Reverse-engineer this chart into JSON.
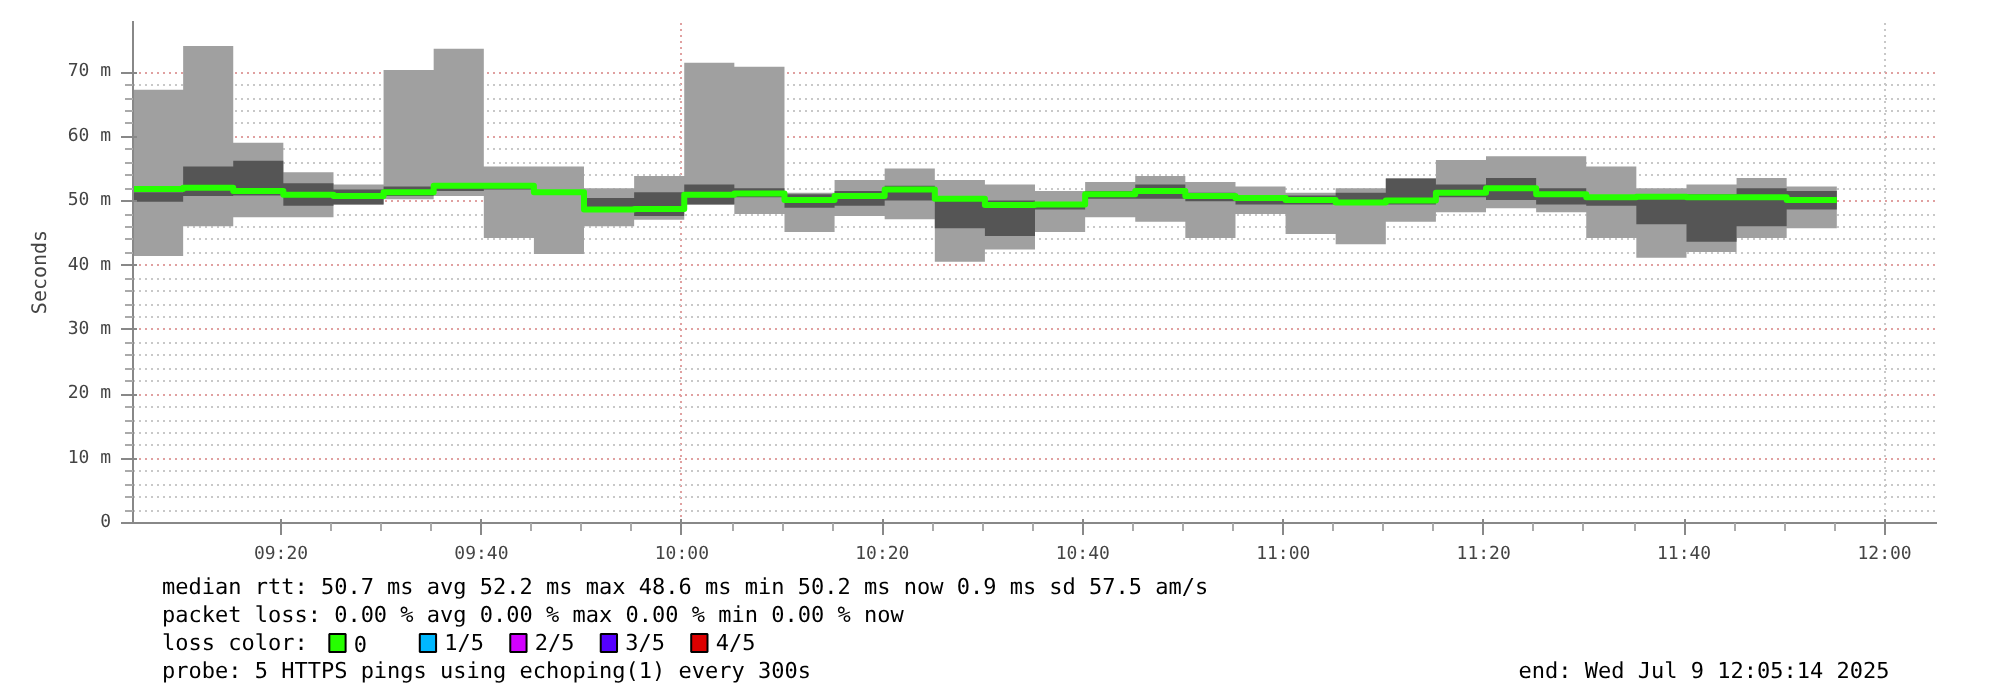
{
  "chart_data": {
    "type": "step",
    "ylabel": "Seconds",
    "legend_title": "loss color:",
    "legend": "bottom",
    "grid": true,
    "xlim": [
      9.0872,
      12.0872
    ],
    "ylim": [
      0,
      78
    ],
    "xticks": [
      {
        "value": 9.333333,
        "label": "09:20"
      },
      {
        "value": 9.666667,
        "label": "09:40"
      },
      {
        "value": 10.0,
        "label": "10:00"
      },
      {
        "value": 10.333333,
        "label": "10:20"
      },
      {
        "value": 10.666667,
        "label": "10:40"
      },
      {
        "value": 11.0,
        "label": "11:00"
      },
      {
        "value": 11.333333,
        "label": "11:20"
      },
      {
        "value": 11.666667,
        "label": "11:40"
      },
      {
        "value": 12.0,
        "label": "12:00"
      }
    ],
    "yticks": [
      0,
      {
        "value": 10,
        "label": "10 m"
      },
      {
        "value": 20,
        "label": "20 m"
      },
      {
        "value": 30,
        "label": "30 m"
      },
      {
        "value": 40,
        "label": "40 m"
      },
      {
        "value": 50,
        "label": "50 m"
      },
      {
        "value": 60,
        "label": "60 m"
      },
      {
        "value": 70,
        "label": "70 m"
      }
    ],
    "x": [
      9.0872,
      9.1706,
      9.2539,
      9.3372,
      9.4206,
      9.5039,
      9.5872,
      9.6706,
      9.7539,
      9.8372,
      9.9206,
      10.0039,
      10.0872,
      10.1706,
      10.2539,
      10.3372,
      10.4206,
      10.5039,
      10.5872,
      10.6706,
      10.7539,
      10.8372,
      10.9206,
      11.0039,
      11.0872,
      11.1706,
      11.2539,
      11.3372,
      11.4206,
      11.5039,
      11.5872,
      11.6706,
      11.7539,
      11.8372,
      11.9206
    ],
    "series": [
      {
        "color": "#a0a0a0",
        "values": [
          null,
          null,
          null,
          null,
          null,
          null,
          null,
          null,
          null,
          null,
          null,
          null,
          null,
          null,
          null,
          null,
          null,
          null,
          null,
          null,
          null,
          null,
          null,
          null,
          null,
          null,
          null,
          null,
          null,
          null,
          null,
          null,
          null,
          null,
          null
        ],
        "lower": [
          41.5,
          46.1,
          47.5,
          47.5,
          49.5,
          50.3,
          50.8,
          44.3,
          41.8,
          46.1,
          47.1,
          49.5,
          48.0,
          45.2,
          47.7,
          47.2,
          40.6,
          42.5,
          45.2,
          47.5,
          46.8,
          44.3,
          48.0,
          44.9,
          43.3,
          46.8,
          48.3,
          48.9,
          48.3,
          44.3,
          41.2,
          42.1,
          44.3,
          45.8,
          45.8
        ],
        "upper": [
          67.3,
          74.1,
          59.1,
          54.5,
          52.6,
          70.4,
          73.7,
          55.4,
          55.4,
          52.0,
          53.9,
          71.5,
          70.9,
          51.3,
          53.3,
          55.1,
          53.3,
          52.6,
          51.6,
          53.0,
          53.9,
          53.0,
          52.3,
          51.3,
          52.0,
          53.6,
          56.4,
          57.0,
          57.0,
          55.4,
          52.0,
          52.6,
          53.6,
          52.3,
          52.3
        ]
      },
      {
        "color": "#555555",
        "values": [
          null,
          null,
          null,
          null,
          null,
          null,
          null,
          null,
          null,
          null,
          null,
          null,
          null,
          null,
          null,
          null,
          null,
          null,
          null,
          null,
          null,
          null,
          null,
          null,
          null,
          null,
          null,
          null,
          null,
          null,
          null,
          null,
          null,
          null,
          null
        ],
        "lower": [
          49.9,
          50.8,
          50.9,
          49.3,
          49.5,
          50.8,
          51.6,
          51.8,
          51.1,
          48.5,
          47.7,
          49.5,
          50.6,
          49.0,
          49.3,
          50.1,
          45.8,
          44.6,
          48.7,
          50.4,
          50.4,
          50.0,
          49.5,
          49.5,
          49.5,
          49.5,
          50.6,
          50.2,
          49.5,
          49.3,
          46.4,
          43.7,
          46.1,
          48.7,
          48.7
        ],
        "upper": [
          51.4,
          55.4,
          56.3,
          52.8,
          51.8,
          52.3,
          52.8,
          52.4,
          51.6,
          50.5,
          51.4,
          52.6,
          52.0,
          51.1,
          51.6,
          52.4,
          50.8,
          50.1,
          49.7,
          51.6,
          52.6,
          51.3,
          50.8,
          50.9,
          51.3,
          53.5,
          52.6,
          53.6,
          52.0,
          50.8,
          51.1,
          51.1,
          52.0,
          51.6,
          51.6
        ]
      },
      {
        "name": "0",
        "color": "#26ff00",
        "values": [
          51.9,
          52.1,
          51.6,
          51.0,
          50.8,
          51.4,
          52.4,
          52.4,
          51.4,
          48.7,
          48.8,
          51.0,
          51.2,
          50.2,
          50.8,
          51.8,
          50.4,
          49.4,
          49.5,
          51.1,
          51.6,
          50.8,
          50.5,
          50.2,
          49.8,
          50.1,
          51.3,
          52.0,
          51.1,
          50.6,
          50.7,
          50.6,
          50.6,
          50.2,
          50.2
        ]
      },
      {
        "name": "1/5",
        "color": "#00b8ff",
        "values": [
          null,
          null,
          null,
          null,
          null,
          null,
          null,
          null,
          null,
          null,
          null,
          null,
          null,
          null,
          null,
          null,
          null,
          null,
          null,
          null,
          null,
          null,
          null,
          null,
          null,
          null,
          null,
          null,
          null,
          null,
          null,
          null,
          null,
          null,
          null
        ]
      },
      {
        "name": "2/5",
        "color": "#d200ff",
        "values": [
          null,
          null,
          null,
          null,
          null,
          null,
          null,
          null,
          null,
          null,
          null,
          null,
          null,
          null,
          null,
          null,
          null,
          null,
          null,
          null,
          null,
          null,
          null,
          null,
          null,
          null,
          null,
          null,
          null,
          null,
          null,
          null,
          null,
          null,
          null
        ]
      },
      {
        "name": "3/5",
        "color": "#5500ff",
        "values": [
          null,
          null,
          null,
          null,
          null,
          null,
          null,
          null,
          null,
          null,
          null,
          null,
          null,
          null,
          null,
          null,
          null,
          null,
          null,
          null,
          null,
          null,
          null,
          null,
          null,
          null,
          null,
          null,
          null,
          null,
          null,
          null,
          null,
          null,
          null
        ]
      },
      {
        "name": "4/5",
        "color": "#dd0000",
        "values": [
          null,
          null,
          null,
          null,
          null,
          null,
          null,
          null,
          null,
          null,
          null,
          null,
          null,
          null,
          null,
          null,
          null,
          null,
          null,
          null,
          null,
          null,
          null,
          null,
          null,
          null,
          null,
          null,
          null,
          null,
          null,
          null,
          null,
          null,
          null
        ]
      }
    ],
    "annotations": [
      "median rtt:  50.7 ms avg  52.2 ms max  48.6 ms min  50.2 ms now  0.9 ms sd  57.5   am/s",
      "packet loss: 0.00 % avg  0.00 % max  0.00 % min  0.00 % now",
      "probe:       5 HTTPS pings using echoping(1) every 300s",
      "end: Wed Jul  9 12:05:14 2025"
    ]
  }
}
